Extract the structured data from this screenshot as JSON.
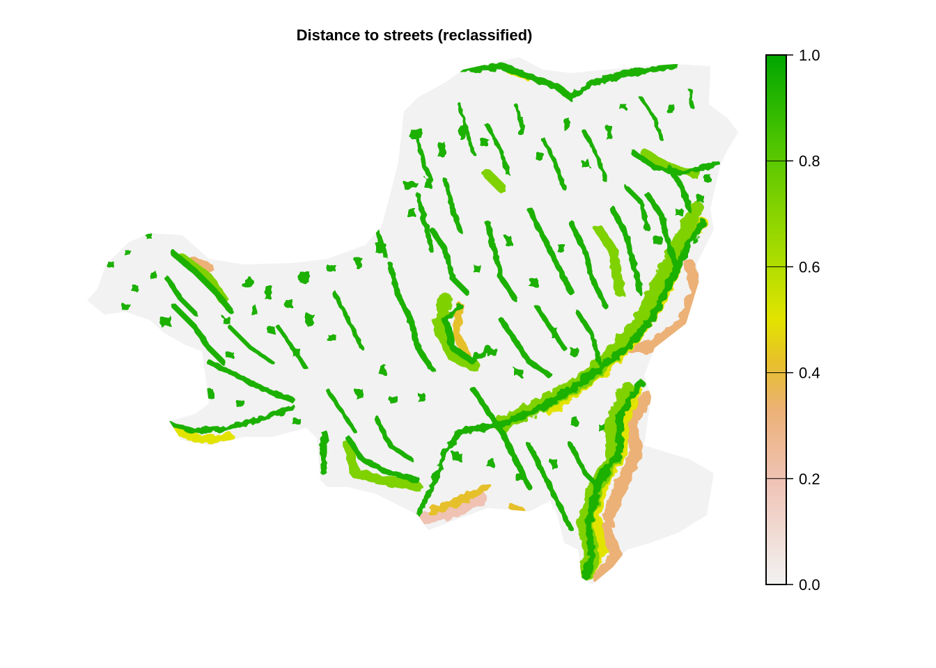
{
  "title": "Distance to streets (reclassified)",
  "legend": {
    "type": "continuous-colorbar",
    "range": [
      0.0,
      1.0
    ],
    "ticks": [
      "0.0",
      "0.2",
      "0.4",
      "0.6",
      "0.8",
      "1.0"
    ],
    "colors": [
      "#f2f2f2",
      "#efc2b3",
      "#ecb176",
      "#e6c02a",
      "#e3e300",
      "#b2de00",
      "#7fd100",
      "#45c200",
      "#00a600"
    ]
  },
  "raster": {
    "background_color": "#f2f2f2",
    "no_data_color": "#ffffff"
  }
}
